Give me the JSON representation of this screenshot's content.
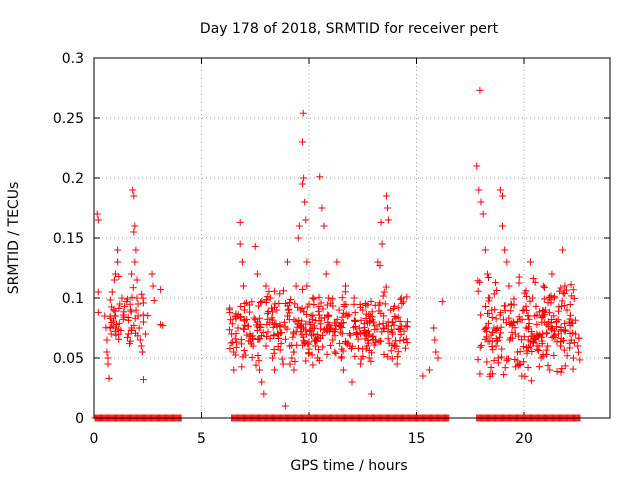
{
  "chart_data": {
    "type": "scatter",
    "title": "Day 178 of 2018, SRMTID for receiver pert",
    "xlabel": "GPS time / hours",
    "ylabel": "SRMTID / TECUs",
    "xlim": [
      0,
      24
    ],
    "ylim": [
      0,
      0.3
    ],
    "x_ticks": [
      0,
      5,
      10,
      15,
      20
    ],
    "x_tick_labels": [
      "0",
      "5",
      "10",
      "15",
      "20"
    ],
    "y_ticks": [
      0,
      0.05,
      0.1,
      0.15,
      0.2,
      0.25,
      0.3
    ],
    "y_tick_labels": [
      "0",
      "0.05",
      "0.1",
      "0.15",
      "0.2",
      "0.25",
      "0.3"
    ],
    "grid": true,
    "marker": "+",
    "color": "#ff0000",
    "series": [
      {
        "name": "SRMTID",
        "points": [
          [
            0.15,
            0.17
          ],
          [
            0.2,
            0.165
          ],
          [
            0.2,
            0.105
          ],
          [
            0.2,
            0.088
          ],
          [
            0.5,
            0.085
          ],
          [
            0.6,
            0.065
          ],
          [
            0.6,
            0.055
          ],
          [
            0.65,
            0.05
          ],
          [
            0.65,
            0.045
          ],
          [
            0.7,
            0.033
          ],
          [
            0.75,
            0.075
          ],
          [
            0.8,
            0.07
          ],
          [
            0.85,
            0.105
          ],
          [
            0.9,
            0.09
          ],
          [
            0.95,
            0.115
          ],
          [
            1.0,
            0.12
          ],
          [
            1.0,
            0.085
          ],
          [
            1.05,
            0.078
          ],
          [
            1.1,
            0.14
          ],
          [
            1.1,
            0.13
          ],
          [
            1.15,
            0.118
          ],
          [
            1.2,
            0.095
          ],
          [
            1.25,
            0.073
          ],
          [
            1.3,
            0.1
          ],
          [
            1.5,
            0.097
          ],
          [
            1.6,
            0.07
          ],
          [
            1.65,
            0.062
          ],
          [
            1.7,
            0.09
          ],
          [
            1.75,
            0.12
          ],
          [
            1.75,
            0.075
          ],
          [
            1.8,
            0.19
          ],
          [
            1.85,
            0.185
          ],
          [
            1.85,
            0.155
          ],
          [
            1.9,
            0.16
          ],
          [
            1.9,
            0.13
          ],
          [
            1.95,
            0.14
          ],
          [
            2.0,
            0.115
          ],
          [
            2.0,
            0.1
          ],
          [
            2.05,
            0.095
          ],
          [
            2.05,
            0.085
          ],
          [
            2.1,
            0.075
          ],
          [
            2.15,
            0.065
          ],
          [
            2.2,
            0.06
          ],
          [
            2.25,
            0.055
          ],
          [
            2.3,
            0.032
          ],
          [
            2.3,
            0.08
          ],
          [
            2.4,
            0.07
          ],
          [
            2.7,
            0.12
          ],
          [
            2.75,
            0.11
          ],
          [
            2.8,
            0.098
          ],
          [
            3.1,
            0.107
          ],
          [
            3.1,
            0.078
          ],
          [
            3.2,
            0.077
          ],
          [
            6.4,
            0.07
          ],
          [
            6.45,
            0.063
          ],
          [
            6.5,
            0.055
          ],
          [
            6.5,
            0.04
          ],
          [
            6.6,
            0.085
          ],
          [
            6.7,
            0.075
          ],
          [
            6.8,
            0.163
          ],
          [
            6.8,
            0.145
          ],
          [
            6.9,
            0.13
          ],
          [
            6.95,
            0.11
          ],
          [
            7.0,
            0.09
          ],
          [
            7.1,
            0.082
          ],
          [
            7.3,
            0.068
          ],
          [
            7.4,
            0.06
          ],
          [
            7.5,
            0.143
          ],
          [
            7.6,
            0.12
          ],
          [
            7.6,
            0.08
          ],
          [
            7.7,
            0.04
          ],
          [
            7.8,
            0.03
          ],
          [
            7.9,
            0.02
          ],
          [
            8.0,
            0.11
          ],
          [
            8.0,
            0.06
          ],
          [
            8.2,
            0.1
          ],
          [
            8.3,
            0.05
          ],
          [
            8.4,
            0.04
          ],
          [
            8.5,
            0.09
          ],
          [
            8.6,
            0.07
          ],
          [
            8.7,
            0.062
          ],
          [
            8.8,
            0.045
          ],
          [
            8.9,
            0.01
          ],
          [
            9.0,
            0.13
          ],
          [
            9.0,
            0.085
          ],
          [
            9.1,
            0.06
          ],
          [
            9.2,
            0.05
          ],
          [
            9.3,
            0.04
          ],
          [
            9.4,
            0.11
          ],
          [
            9.5,
            0.15
          ],
          [
            9.55,
            0.16
          ],
          [
            9.6,
            0.09
          ],
          [
            9.65,
            0.075
          ],
          [
            9.7,
            0.23
          ],
          [
            9.75,
            0.2
          ],
          [
            9.7,
            0.195
          ],
          [
            9.73,
            0.254
          ],
          [
            9.8,
            0.18
          ],
          [
            9.85,
            0.165
          ],
          [
            9.9,
            0.13
          ],
          [
            9.9,
            0.11
          ],
          [
            10.0,
            0.095
          ],
          [
            10.1,
            0.085
          ],
          [
            10.2,
            0.07
          ],
          [
            10.3,
            0.06
          ],
          [
            10.4,
            0.05
          ],
          [
            10.5,
            0.201
          ],
          [
            10.6,
            0.175
          ],
          [
            10.7,
            0.16
          ],
          [
            10.8,
            0.12
          ],
          [
            10.9,
            0.1
          ],
          [
            11.0,
            0.075
          ],
          [
            11.1,
            0.065
          ],
          [
            11.2,
            0.055
          ],
          [
            11.3,
            0.13
          ],
          [
            11.4,
            0.09
          ],
          [
            11.5,
            0.05
          ],
          [
            11.6,
            0.04
          ],
          [
            11.7,
            0.11
          ],
          [
            11.8,
            0.085
          ],
          [
            11.9,
            0.06
          ],
          [
            12.0,
            0.03
          ],
          [
            12.1,
            0.1
          ],
          [
            12.2,
            0.07
          ],
          [
            12.3,
            0.058
          ],
          [
            12.4,
            0.045
          ],
          [
            12.5,
            0.09
          ],
          [
            12.6,
            0.07
          ],
          [
            12.7,
            0.06
          ],
          [
            12.8,
            0.05
          ],
          [
            12.9,
            0.02
          ],
          [
            13.0,
            0.08
          ],
          [
            13.1,
            0.065
          ],
          [
            13.2,
            0.13
          ],
          [
            13.3,
            0.127
          ],
          [
            13.35,
            0.163
          ],
          [
            13.4,
            0.145
          ],
          [
            13.5,
            0.105
          ],
          [
            13.6,
            0.185
          ],
          [
            13.65,
            0.175
          ],
          [
            13.7,
            0.165
          ],
          [
            13.8,
            0.09
          ],
          [
            13.9,
            0.08
          ],
          [
            14.0,
            0.06
          ],
          [
            14.1,
            0.045
          ],
          [
            14.3,
            0.1
          ],
          [
            14.4,
            0.065
          ],
          [
            15.3,
            0.035
          ],
          [
            15.6,
            0.04
          ],
          [
            15.8,
            0.075
          ],
          [
            15.85,
            0.065
          ],
          [
            15.9,
            0.055
          ],
          [
            16.0,
            0.05
          ],
          [
            16.2,
            0.097
          ],
          [
            17.8,
            0.21
          ],
          [
            17.9,
            0.19
          ],
          [
            17.95,
            0.273
          ],
          [
            18.0,
            0.18
          ],
          [
            18.1,
            0.17
          ],
          [
            18.2,
            0.14
          ],
          [
            18.3,
            0.12
          ],
          [
            18.4,
            0.1
          ],
          [
            18.5,
            0.09
          ],
          [
            18.6,
            0.075
          ],
          [
            18.7,
            0.06
          ],
          [
            18.8,
            0.05
          ],
          [
            18.9,
            0.19
          ],
          [
            19.0,
            0.185
          ],
          [
            19.0,
            0.16
          ],
          [
            19.1,
            0.14
          ],
          [
            19.2,
            0.13
          ],
          [
            19.3,
            0.11
          ],
          [
            19.4,
            0.095
          ],
          [
            19.5,
            0.08
          ],
          [
            19.6,
            0.07
          ],
          [
            19.7,
            0.055
          ],
          [
            19.8,
            0.045
          ],
          [
            19.9,
            0.035
          ],
          [
            20.0,
            0.09
          ],
          [
            20.1,
            0.075
          ],
          [
            20.2,
            0.065
          ],
          [
            20.3,
            0.13
          ],
          [
            20.4,
            0.1
          ],
          [
            20.5,
            0.085
          ],
          [
            20.6,
            0.07
          ],
          [
            20.7,
            0.06
          ],
          [
            20.8,
            0.05
          ],
          [
            20.9,
            0.11
          ],
          [
            21.0,
            0.09
          ],
          [
            21.1,
            0.06
          ],
          [
            21.2,
            0.04
          ],
          [
            21.3,
            0.12
          ],
          [
            21.4,
            0.1
          ],
          [
            21.5,
            0.08
          ],
          [
            21.6,
            0.07
          ],
          [
            21.7,
            0.06
          ],
          [
            21.8,
            0.14
          ],
          [
            21.9,
            0.11
          ],
          [
            22.0,
            0.09
          ],
          [
            22.1,
            0.08
          ],
          [
            22.2,
            0.065
          ],
          [
            22.3,
            0.05
          ],
          [
            22.4,
            0.07
          ],
          [
            22.5,
            0.06
          ]
        ],
        "generated_scatter": [
          {
            "x_range": [
              6.3,
              14.6
            ],
            "y_range": [
              0.04,
              0.11
            ],
            "count": 380
          },
          {
            "x_range": [
              17.8,
              22.6
            ],
            "y_range": [
              0.03,
              0.12
            ],
            "count": 240
          },
          {
            "x_range": [
              0.5,
              2.5
            ],
            "y_range": [
              0.055,
              0.11
            ],
            "count": 45
          }
        ],
        "zero_bands": [
          {
            "x_range": [
              0.05,
              4.05
            ],
            "spacing": 0.05
          },
          {
            "x_range": [
              6.4,
              16.5
            ],
            "spacing": 0.05
          },
          {
            "x_range": [
              17.8,
              22.6
            ],
            "spacing": 0.05
          }
        ]
      }
    ]
  }
}
